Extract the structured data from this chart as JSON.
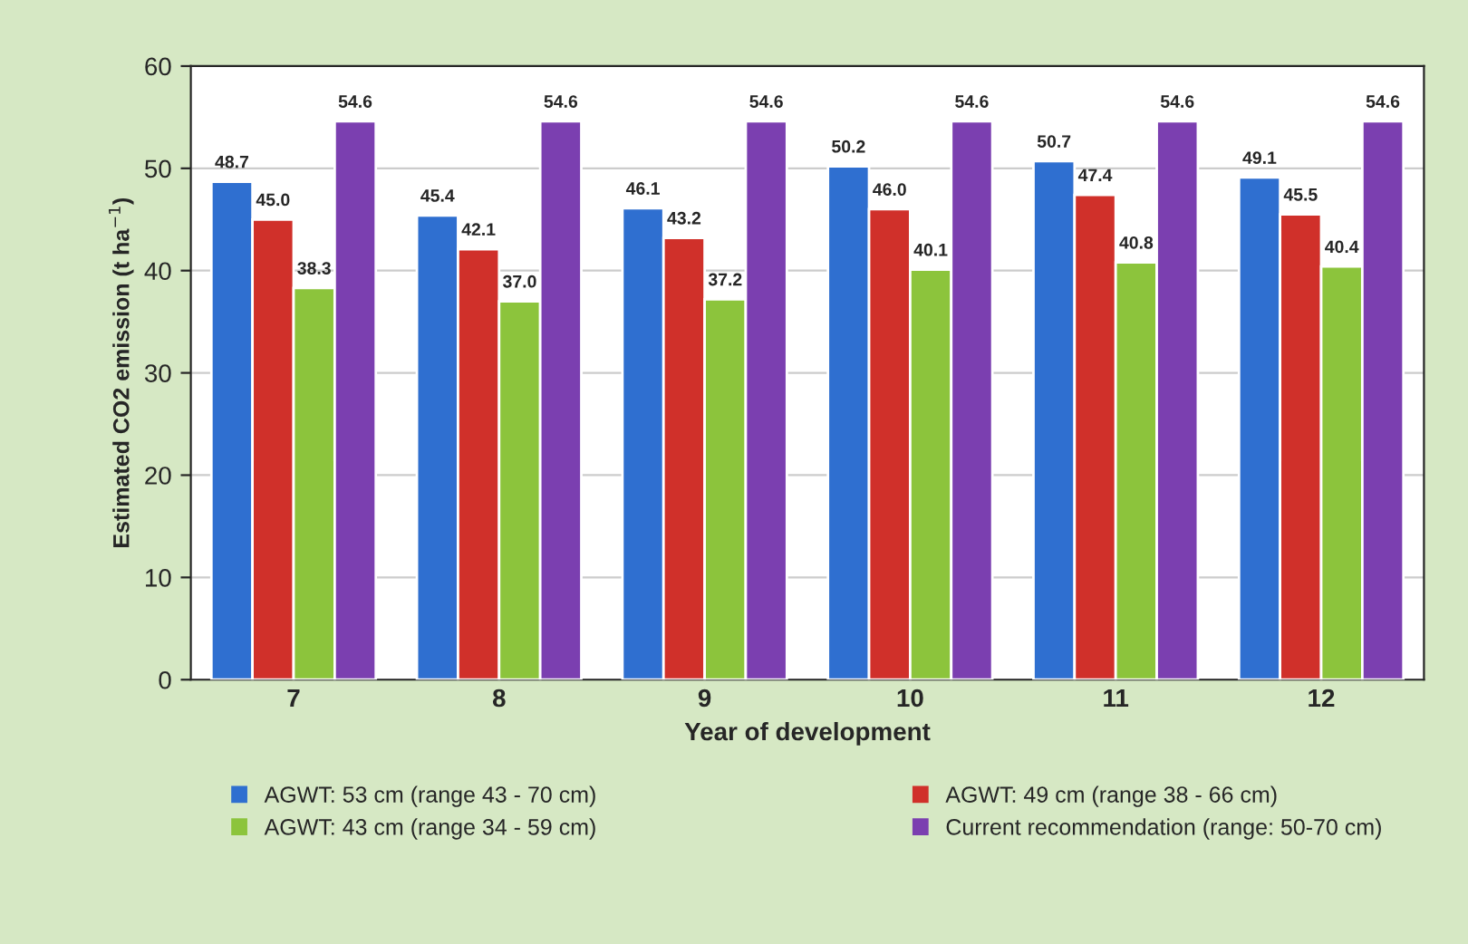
{
  "chart_data": {
    "type": "bar",
    "xlabel": "Year of development",
    "ylabel": "Estimated CO2 emission (t ha$^{−1}$)",
    "categories": [
      "7",
      "8",
      "9",
      "10",
      "11",
      "12"
    ],
    "series": [
      {
        "name": "AGWT: 53 cm (range 43 - 70 cm)",
        "color": "#2f6fd0",
        "values": [
          48.7,
          45.4,
          46.1,
          50.2,
          50.7,
          49.1
        ],
        "value_labels": [
          "48.7",
          "45.4",
          "46.1",
          "50.2",
          "50.7",
          "49.1"
        ]
      },
      {
        "name": "AGWT: 49 cm (range 38 - 66 cm)",
        "color": "#d0302a",
        "values": [
          45.0,
          42.1,
          43.2,
          46.0,
          47.4,
          45.5
        ],
        "value_labels": [
          "45.0",
          "42.1",
          "43.2",
          "46.0",
          "47.4",
          "45.5"
        ]
      },
      {
        "name": "AGWT: 43 cm (range 34 - 59 cm)",
        "color": "#8cc43c",
        "values": [
          38.3,
          37.0,
          37.2,
          40.1,
          40.8,
          40.4
        ],
        "value_labels": [
          "38.3",
          "37.0",
          "37.2",
          "40.1",
          "40.8",
          "40.4"
        ]
      },
      {
        "name": "Current recommendation (range: 50-70 cm)",
        "color": "#7b3fb0",
        "values": [
          54.6,
          54.6,
          54.6,
          54.6,
          54.6,
          54.6
        ],
        "value_labels": [
          "54.6",
          "54.6",
          "54.6",
          "54.6",
          "54.6",
          "54.6"
        ]
      }
    ],
    "ylim": [
      0,
      60
    ],
    "yticks": [
      0,
      10,
      20,
      30,
      40,
      50,
      60
    ],
    "grid": "y",
    "legend": "bottom"
  }
}
